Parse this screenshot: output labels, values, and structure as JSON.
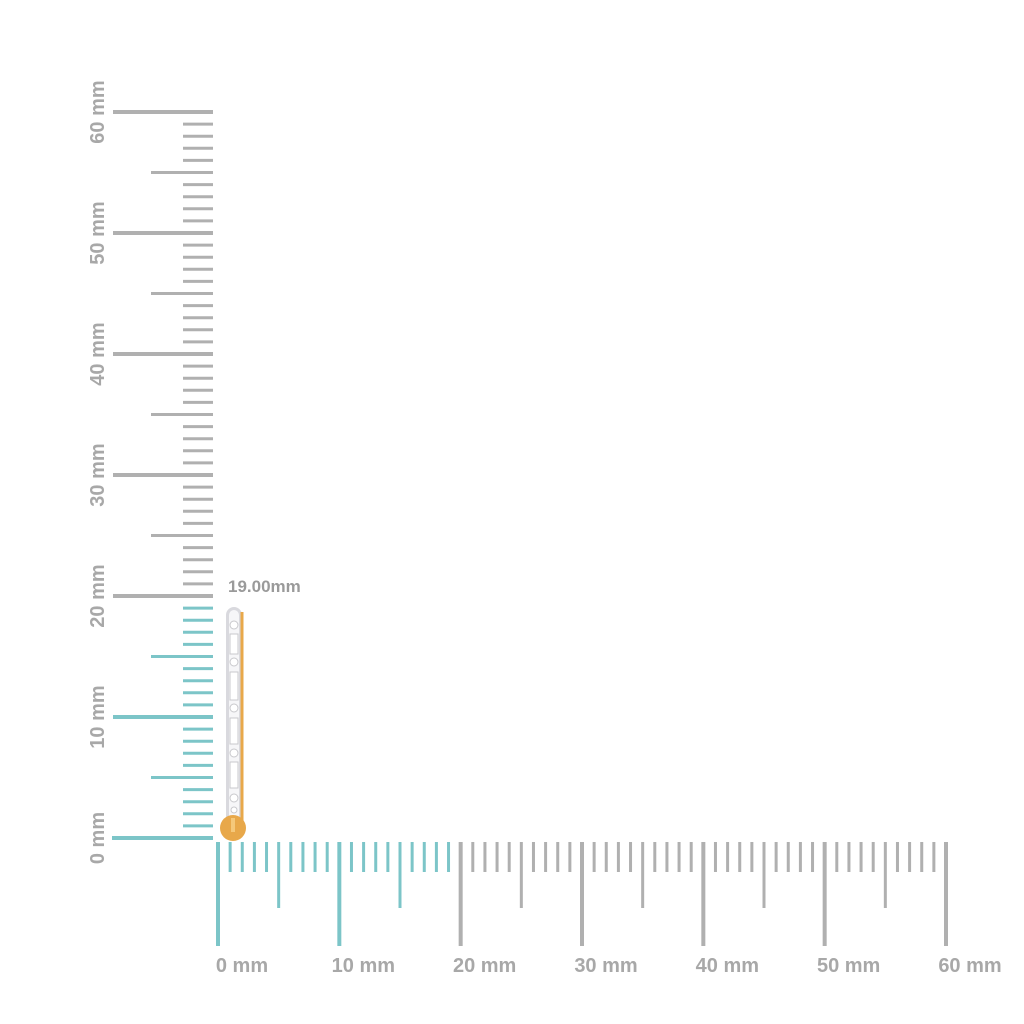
{
  "measurement": {
    "label": "19.00mm",
    "value_mm": 19.0
  },
  "ruler": {
    "max_mm": 60,
    "labels": [
      "0 mm",
      "10 mm",
      "20 mm",
      "30 mm",
      "40 mm",
      "50 mm",
      "60 mm"
    ],
    "colors": {
      "base": "#b0b0b0",
      "highlight": "#7cc5c8",
      "label": "#a8a8a8",
      "measure_label": "#9a9a9a"
    }
  },
  "product": {
    "metal_color": "#e8a84a",
    "stone_color": "#f4f4f6"
  }
}
